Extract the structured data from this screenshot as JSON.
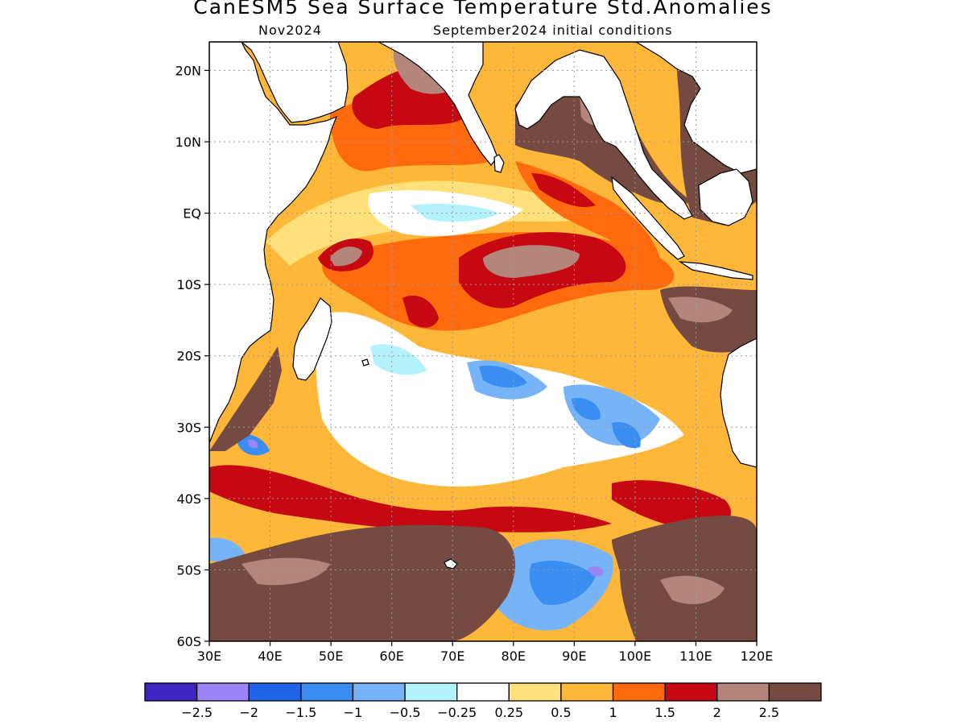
{
  "title": "CanESM5 Sea Surface Temperature Std.Anomalies",
  "subtitle_left": "Nov2024",
  "subtitle_right": "September2024 initial conditions",
  "map": {
    "region": "Indian Ocean",
    "lon_range": [
      30,
      120
    ],
    "lat_range": [
      -60,
      24
    ],
    "lat_ticks": [
      {
        "value": 20,
        "label": "20N"
      },
      {
        "value": 10,
        "label": "10N"
      },
      {
        "value": 0,
        "label": "EQ"
      },
      {
        "value": -10,
        "label": "10S"
      },
      {
        "value": -20,
        "label": "20S"
      },
      {
        "value": -30,
        "label": "30S"
      },
      {
        "value": -40,
        "label": "40S"
      },
      {
        "value": -50,
        "label": "50S"
      },
      {
        "value": -60,
        "label": "60S"
      }
    ],
    "lon_ticks": [
      {
        "value": 30,
        "label": "30E"
      },
      {
        "value": 40,
        "label": "40E"
      },
      {
        "value": 50,
        "label": "50E"
      },
      {
        "value": 60,
        "label": "60E"
      },
      {
        "value": 70,
        "label": "70E"
      },
      {
        "value": 80,
        "label": "80E"
      },
      {
        "value": 90,
        "label": "90E"
      },
      {
        "value": 100,
        "label": "100E"
      },
      {
        "value": 110,
        "label": "110E"
      },
      {
        "value": 120,
        "label": "120E"
      }
    ],
    "grid": "dotted"
  },
  "colorbar": {
    "colors": [
      "#3f26c0",
      "#9c84f8",
      "#1f63e6",
      "#3a8ef2",
      "#77b4f7",
      "#b3f1fb",
      "#ffffff",
      "#ffe07a",
      "#ffb73a",
      "#ff6a0e",
      "#c60812",
      "#b3857b",
      "#744a42"
    ],
    "labels": [
      "-2.5",
      "-2",
      "-1.5",
      "-1",
      "-0.5",
      "-0.25",
      "0.25",
      "0.5",
      "1",
      "1.5",
      "2",
      "2.5"
    ]
  }
}
